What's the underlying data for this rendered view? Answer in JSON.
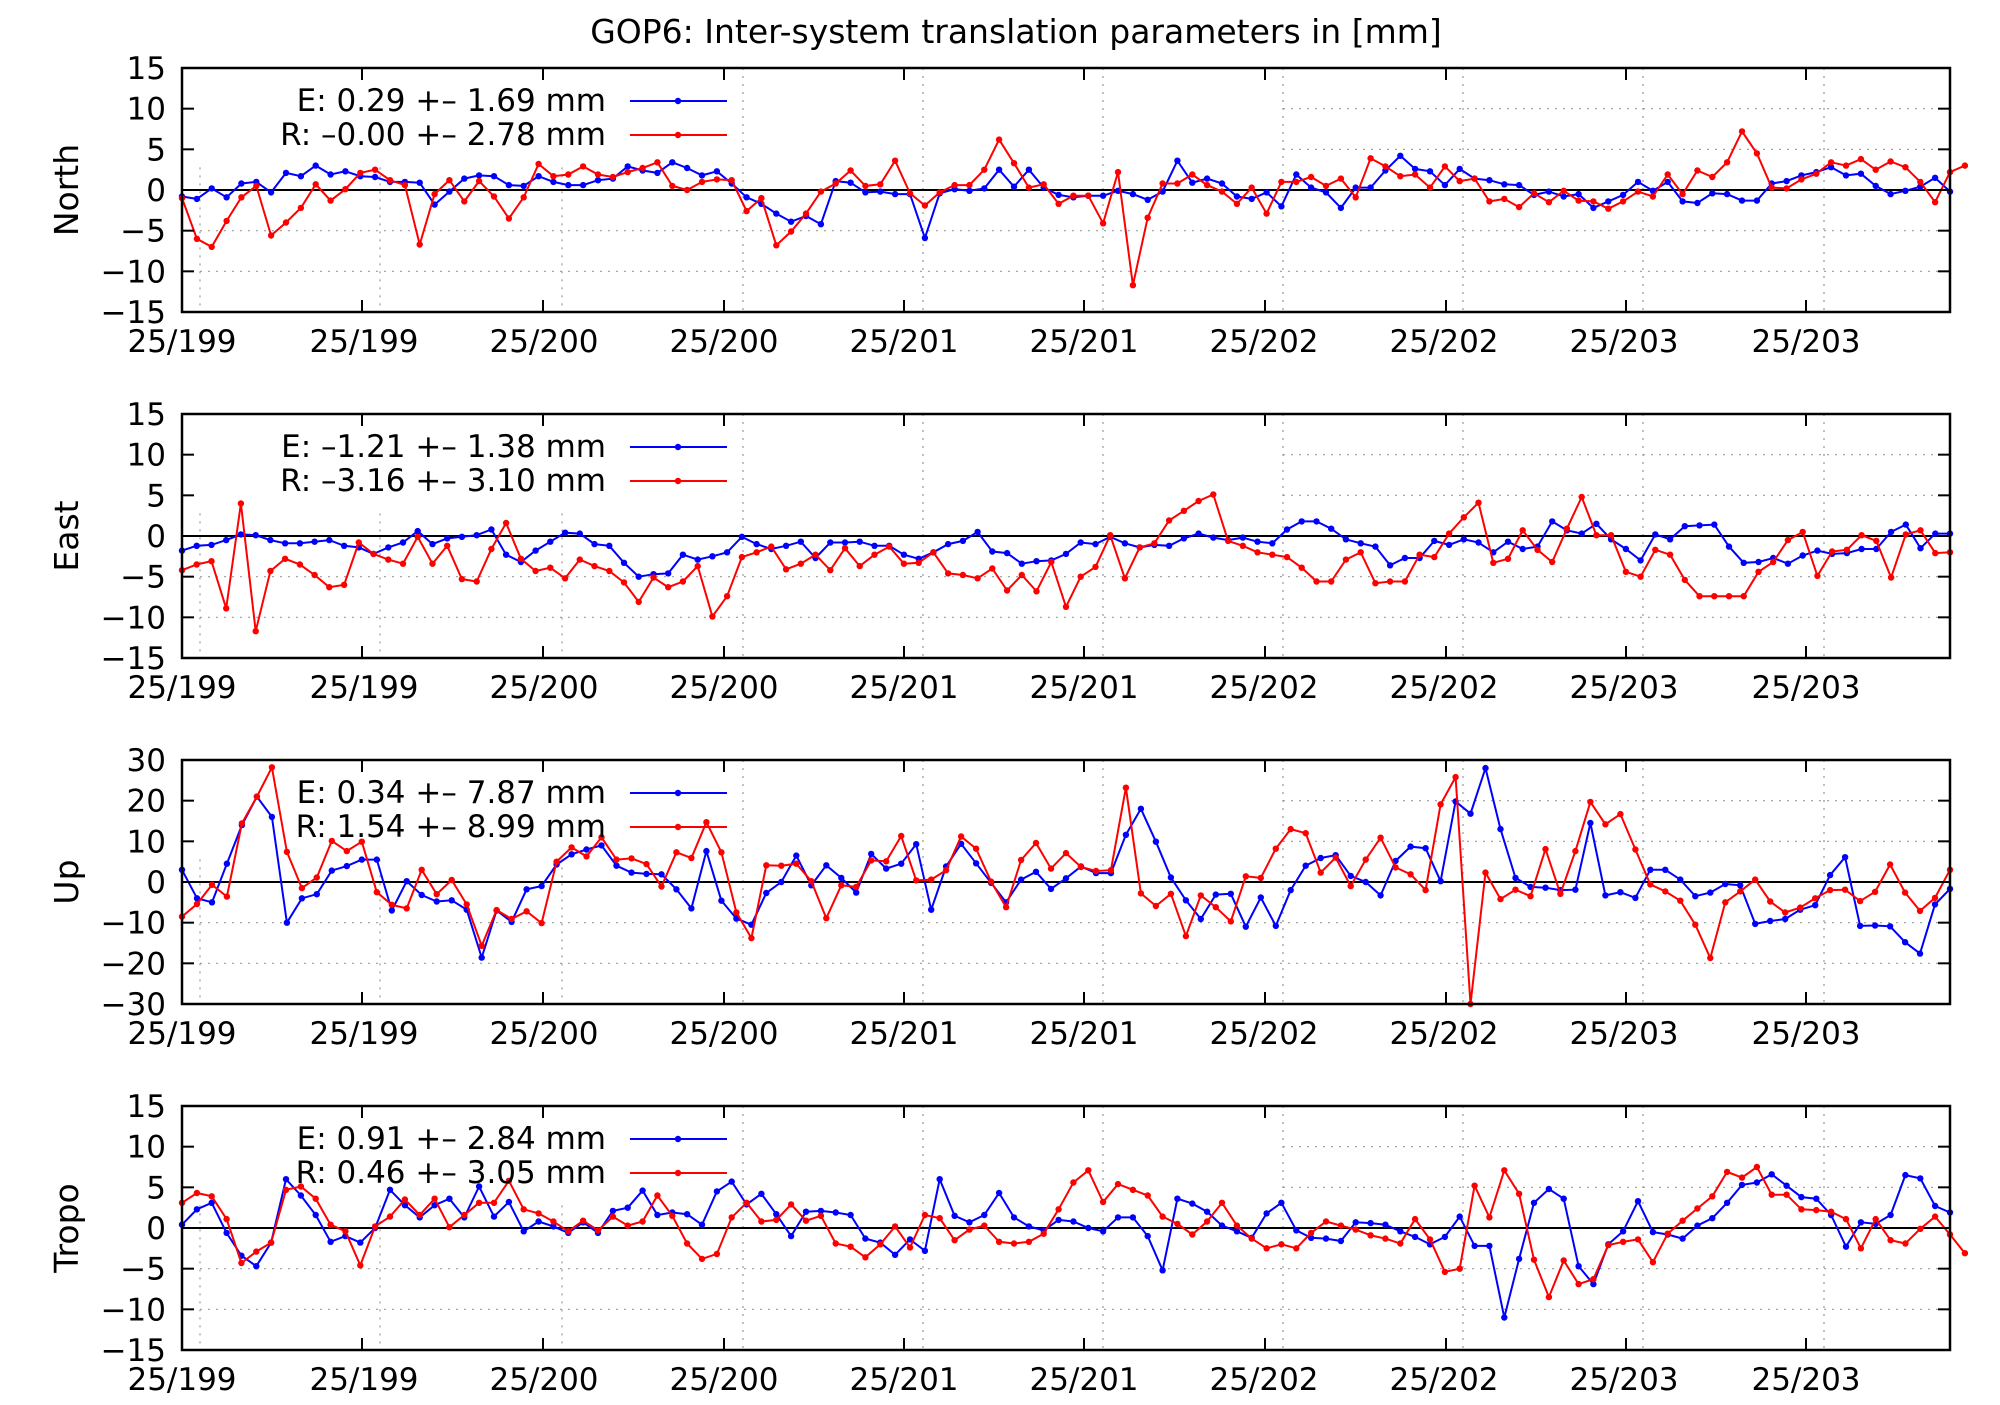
{
  "title": "GOP6: Inter-system translation parameters in [mm]",
  "x_tick_labels": [
    "25/199",
    "25/199",
    "25/200",
    "25/200",
    "25/201",
    "25/201",
    "25/202",
    "25/202",
    "25/203",
    "25/203"
  ],
  "colors": {
    "E": "#0000ff",
    "R": "#ff0000",
    "zero_line": "#000000",
    "grid": "#9a9a9a"
  },
  "chart_data": [
    {
      "type": "line",
      "ylabel": "North",
      "ylim": [
        -15,
        15
      ],
      "yticks": [
        15,
        10,
        5,
        0,
        -5,
        -10,
        -15
      ],
      "grid": "dotted, partial",
      "legend_position": "top-left",
      "series": [
        {
          "name": "E",
          "legend": "E:   0.29 +– 1.69 mm",
          "values": [
            -0.8,
            -1.1,
            0.2,
            -0.9,
            0.8,
            1.0,
            -0.3,
            2.1,
            1.7,
            3.0,
            1.9,
            2.3,
            1.7,
            1.6,
            1.0,
            1.0,
            0.9,
            -1.8,
            -0.2,
            1.4,
            1.8,
            1.7,
            0.6,
            0.5,
            1.7,
            1.0,
            0.6,
            0.6,
            1.2,
            1.4,
            2.9,
            2.4,
            2.1,
            3.4,
            2.7,
            1.8,
            2.3,
            0.8,
            -0.9,
            -1.7,
            -2.9,
            -3.9,
            -3.2,
            -4.2,
            1.1,
            0.9,
            -0.3,
            -0.2,
            -0.5,
            -0.5,
            -5.9,
            -0.4,
            0.1,
            -0.1,
            0.2,
            2.5,
            0.4,
            2.5,
            0.3,
            -0.6,
            -0.9,
            -0.7,
            -0.7,
            -0.1,
            -0.5,
            -1.2,
            -0.2,
            3.6,
            0.9,
            1.4,
            0.8,
            -0.8,
            -1.1,
            -0.3,
            -2.0,
            1.9,
            0.3,
            -0.3,
            -2.2,
            0.3,
            0.3,
            2.4,
            4.2,
            2.6,
            2.3,
            0.6,
            2.6,
            1.4,
            1.2,
            0.7,
            0.6,
            -0.6,
            -0.2,
            -0.8,
            -0.5,
            -2.2,
            -1.4,
            -0.6,
            1.0,
            -0.1,
            1.0,
            -1.4,
            -1.6,
            -0.4,
            -0.5,
            -1.3,
            -1.3,
            0.8,
            1.1,
            1.8,
            2.2,
            2.8,
            1.8,
            2.0,
            0.5,
            -0.5,
            -0.1,
            0.4,
            1.5,
            -0.2
          ]
        },
        {
          "name": "R",
          "legend": "R:  –0.00 +– 2.78 mm",
          "values": [
            -1.0,
            -6.0,
            -7.0,
            -3.8,
            -0.9,
            0.5,
            -5.6,
            -4.0,
            -2.2,
            0.7,
            -1.3,
            0.1,
            2.1,
            2.5,
            1.2,
            0.6,
            -6.7,
            -0.5,
            1.2,
            -1.4,
            1.1,
            -0.8,
            -3.5,
            -0.9,
            3.2,
            1.7,
            1.9,
            2.9,
            1.9,
            1.6,
            2.2,
            2.7,
            3.4,
            0.5,
            0.0,
            1.0,
            1.3,
            1.2,
            -2.6,
            -1.0,
            -6.8,
            -5.1,
            -2.9,
            -0.2,
            0.8,
            2.4,
            0.5,
            0.7,
            3.6,
            -0.4,
            -1.9,
            -0.3,
            0.6,
            0.6,
            2.5,
            6.2,
            3.3,
            0.3,
            0.7,
            -1.7,
            -0.7,
            -0.7,
            -4.1,
            2.2,
            -11.7,
            -3.4,
            0.8,
            0.8,
            1.9,
            0.6,
            -0.2,
            -1.7,
            0.3,
            -2.9,
            1.0,
            1.0,
            1.6,
            0.5,
            1.4,
            -0.9,
            3.9,
            2.9,
            1.7,
            1.9,
            0.3,
            2.9,
            1.1,
            1.4,
            -1.4,
            -1.1,
            -2.1,
            -0.4,
            -1.5,
            -0.1,
            -1.3,
            -1.4,
            -2.3,
            -1.4,
            -0.2,
            -0.8,
            1.9,
            -0.5,
            2.4,
            1.6,
            3.4,
            7.2,
            4.5,
            0.3,
            0.2,
            1.3,
            2.0,
            3.4,
            3.0,
            3.8,
            2.5,
            3.5,
            2.8,
            1.0,
            -1.5,
            2.2,
            3.0
          ]
        }
      ]
    },
    {
      "type": "line",
      "ylabel": "East",
      "ylim": [
        -15,
        15
      ],
      "yticks": [
        15,
        10,
        5,
        0,
        -5,
        -10,
        -15
      ],
      "grid": "dotted, partial",
      "legend_position": "top-left",
      "series": [
        {
          "name": "E",
          "legend": "E:  –1.21 +– 1.38 mm",
          "values": [
            -1.8,
            -1.2,
            -1.1,
            -0.5,
            0.2,
            0.1,
            -0.5,
            -0.9,
            -0.9,
            -0.7,
            -0.5,
            -1.2,
            -1.4,
            -2.2,
            -1.4,
            -0.8,
            0.6,
            -1.0,
            -0.3,
            -0.1,
            0.1,
            0.8,
            -2.3,
            -3.2,
            -1.8,
            -0.7,
            0.4,
            0.3,
            -1.0,
            -1.2,
            -3.3,
            -5.0,
            -4.7,
            -4.6,
            -2.3,
            -2.9,
            -2.5,
            -2.0,
            -0.1,
            -1.0,
            -1.6,
            -1.2,
            -0.7,
            -2.7,
            -0.8,
            -0.8,
            -0.7,
            -1.2,
            -1.2,
            -2.3,
            -2.8,
            -2.0,
            -1.0,
            -0.6,
            0.5,
            -1.9,
            -2.1,
            -3.4,
            -3.1,
            -3.0,
            -2.2,
            -0.8,
            -1.0,
            -0.1,
            -0.9,
            -1.4,
            -1.1,
            -1.2,
            -0.3,
            0.3,
            -0.2,
            -0.5,
            -0.2,
            -0.7,
            -0.9,
            0.8,
            1.8,
            1.8,
            0.9,
            -0.4,
            -0.9,
            -1.3,
            -3.6,
            -2.7,
            -2.7,
            -0.6,
            -1.1,
            -0.4,
            -0.8,
            -2.0,
            -0.7,
            -1.6,
            -1.3,
            1.8,
            0.7,
            0.3,
            1.5,
            -0.4,
            -1.6,
            -3.0,
            0.2,
            -0.4,
            1.2,
            1.3,
            1.4,
            -1.3,
            -3.3,
            -3.2,
            -2.7,
            -3.4,
            -2.4,
            -1.8,
            -2.2,
            -2.1,
            -1.6,
            -1.6,
            0.5,
            1.4,
            -1.5,
            0.3,
            0.3
          ]
        },
        {
          "name": "R",
          "legend": "R:  –3.16 +– 3.10 mm",
          "values": [
            -4.2,
            -3.5,
            -3.1,
            -8.9,
            4.0,
            -11.7,
            -4.3,
            -2.8,
            -3.5,
            -4.8,
            -6.3,
            -6.0,
            -0.8,
            -2.2,
            -2.9,
            -3.4,
            -0.1,
            -3.4,
            -1.2,
            -5.3,
            -5.6,
            -1.6,
            1.6,
            -2.8,
            -4.3,
            -3.9,
            -5.2,
            -2.9,
            -3.7,
            -4.3,
            -5.7,
            -8.1,
            -5.1,
            -6.3,
            -5.6,
            -3.7,
            -9.9,
            -7.4,
            -2.6,
            -2.0,
            -1.3,
            -4.1,
            -3.4,
            -2.3,
            -4.2,
            -1.5,
            -3.7,
            -2.3,
            -1.3,
            -3.4,
            -3.3,
            -2.0,
            -4.6,
            -4.8,
            -5.2,
            -4.0,
            -6.7,
            -4.8,
            -6.8,
            -3.2,
            -8.7,
            -5.0,
            -3.8,
            0.1,
            -5.2,
            -1.4,
            -0.9,
            1.9,
            3.1,
            4.3,
            5.1,
            -0.6,
            -1.2,
            -2.0,
            -2.3,
            -2.6,
            -3.9,
            -5.6,
            -5.6,
            -2.9,
            -2.0,
            -5.8,
            -5.6,
            -5.6,
            -2.3,
            -2.6,
            0.3,
            2.3,
            4.1,
            -3.3,
            -2.8,
            0.7,
            -1.7,
            -3.2,
            0.9,
            4.8,
            0.1,
            0.1,
            -4.4,
            -5.0,
            -1.7,
            -2.3,
            -5.4,
            -7.4,
            -7.4,
            -7.4,
            -7.4,
            -4.4,
            -3.2,
            -0.5,
            0.5,
            -4.9,
            -1.9,
            -1.7,
            0.1,
            -0.6,
            -5.1,
            0.2,
            0.7,
            -2.1,
            -2.0
          ]
        }
      ]
    },
    {
      "type": "line",
      "ylabel": "Up",
      "ylim": [
        -30,
        30
      ],
      "yticks": [
        30,
        20,
        10,
        0,
        -10,
        -20,
        -30
      ],
      "grid": "dotted, partial",
      "legend_position": "top-left",
      "series": [
        {
          "name": "E",
          "legend": "E:   0.34 +– 7.87 mm",
          "values": [
            3.0,
            -4.0,
            -5.0,
            4.5,
            14.0,
            21.0,
            16.0,
            -10.0,
            -4.0,
            -3.0,
            2.8,
            3.9,
            5.5,
            5.5,
            -7.0,
            0.2,
            -3.2,
            -4.8,
            -4.5,
            -6.8,
            -18.6,
            -7.0,
            -9.8,
            -1.8,
            -1.0,
            4.3,
            6.8,
            8.0,
            9.0,
            4.0,
            2.3,
            2.0,
            1.9,
            -1.8,
            -6.5,
            7.6,
            -4.6,
            -9.0,
            -10.5,
            -2.7,
            0.0,
            6.5,
            -0.8,
            4.1,
            1.0,
            -2.6,
            6.9,
            3.3,
            4.5,
            9.3,
            -6.8,
            3.8,
            9.4,
            4.6,
            -0.2,
            -5.0,
            0.6,
            2.5,
            -1.7,
            0.9,
            3.8,
            2.2,
            2.2,
            11.6,
            18.0,
            9.9,
            1.1,
            -4.5,
            -9.1,
            -3.1,
            -2.9,
            -11.0,
            -3.8,
            -10.8,
            -2.0,
            4.0,
            5.9,
            6.6,
            1.5,
            0.0,
            -3.3,
            5.2,
            8.7,
            8.3,
            0.2,
            19.8,
            16.8,
            28.0,
            13.0,
            1.0,
            -1.2,
            -1.4,
            -2.0,
            -1.9,
            14.5,
            -3.3,
            -2.5,
            -3.9,
            3.0,
            3.0,
            0.6,
            -3.5,
            -2.6,
            -0.5,
            -0.8,
            -10.3,
            -9.6,
            -9.1,
            -6.8,
            -5.7,
            1.7,
            6.1,
            -10.8,
            -10.7,
            -10.9,
            -14.8,
            -17.6,
            -5.5,
            -1.7
          ]
        },
        {
          "name": "R",
          "legend": "R:   1.54 +– 8.99 mm",
          "values": [
            -8.5,
            -5.4,
            -0.7,
            -3.6,
            14.4,
            21.0,
            28.2,
            7.4,
            -1.5,
            1.1,
            10.1,
            7.6,
            9.9,
            -2.5,
            -5.6,
            -6.5,
            3.0,
            -3.0,
            0.5,
            -5.5,
            -15.7,
            -6.9,
            -9.1,
            -7.2,
            -10.1,
            5.0,
            8.5,
            6.3,
            11.0,
            5.5,
            5.8,
            4.4,
            -1.1,
            7.3,
            5.9,
            14.7,
            7.3,
            -7.5,
            -13.8,
            4.1,
            4.0,
            4.5,
            0.2,
            -8.9,
            -0.8,
            -1.2,
            5.3,
            5.1,
            11.3,
            0.4,
            0.6,
            2.9,
            11.2,
            8.2,
            0.1,
            -6.2,
            5.4,
            9.6,
            3.3,
            7.1,
            3.7,
            2.7,
            2.9,
            23.2,
            -2.8,
            -5.9,
            -2.9,
            -13.3,
            -3.3,
            -6.2,
            -9.7,
            1.4,
            1.0,
            8.2,
            13.0,
            12.0,
            2.3,
            6.0,
            -1.0,
            5.5,
            10.9,
            3.6,
            1.9,
            -2.0,
            19.1,
            25.8,
            -30.0,
            2.3,
            -4.2,
            -1.9,
            -3.5,
            8.1,
            -2.9,
            7.6,
            19.7,
            14.2,
            16.7,
            8.0,
            -0.6,
            -2.3,
            -4.6,
            -10.5,
            -18.7,
            -5.0,
            -2.3,
            0.6,
            -4.8,
            -7.5,
            -6.3,
            -4.0,
            -2.0,
            -1.9,
            -4.7,
            -2.4,
            4.3,
            -2.6,
            -7.1,
            -3.9,
            3.0
          ]
        }
      ]
    },
    {
      "type": "line",
      "ylabel": "Tropo",
      "ylim": [
        -15,
        15
      ],
      "yticks": [
        15,
        10,
        5,
        0,
        -5,
        -10,
        -15
      ],
      "grid": "dotted, partial",
      "legend_position": "top-left",
      "series": [
        {
          "name": "E",
          "legend": "E:   0.91 +– 2.84 mm",
          "values": [
            0.4,
            2.3,
            3.1,
            -0.6,
            -3.4,
            -4.7,
            -1.8,
            6.0,
            4.0,
            1.6,
            -1.7,
            -1.0,
            -1.8,
            0.0,
            4.7,
            2.8,
            1.3,
            2.8,
            3.6,
            1.3,
            5.1,
            1.4,
            3.2,
            -0.4,
            0.8,
            0.2,
            -0.6,
            0.7,
            -0.6,
            2.1,
            2.5,
            4.6,
            1.6,
            1.9,
            1.7,
            0.4,
            4.5,
            5.7,
            2.9,
            4.2,
            1.7,
            -1.0,
            2.0,
            2.1,
            1.9,
            1.6,
            -1.3,
            -1.8,
            -3.3,
            -1.4,
            -2.8,
            6.0,
            1.5,
            0.7,
            1.6,
            4.3,
            1.3,
            0.2,
            -0.3,
            1.0,
            0.8,
            0.0,
            -0.4,
            1.3,
            1.3,
            -1.0,
            -5.2,
            3.6,
            3.0,
            2.0,
            0.3,
            -0.4,
            -1.2,
            1.8,
            3.1,
            -0.3,
            -1.2,
            -1.3,
            -1.6,
            0.7,
            0.6,
            0.4,
            -0.4,
            -1.1,
            -2.0,
            -1.1,
            1.4,
            -2.2,
            -2.2,
            -11.0,
            -3.8,
            3.1,
            4.8,
            3.6,
            -4.7,
            -6.9,
            -2.0,
            -0.4,
            3.3,
            -0.5,
            -0.8,
            -1.3,
            0.3,
            1.2,
            3.1,
            5.3,
            5.6,
            6.6,
            5.2,
            3.8,
            3.6,
            1.6,
            -2.3,
            0.7,
            0.5,
            1.6,
            6.5,
            6.1,
            2.7,
            1.9
          ]
        },
        {
          "name": "R",
          "legend": "R:   0.46 +– 3.05 mm",
          "values": [
            3.1,
            4.3,
            3.9,
            1.1,
            -4.3,
            -2.9,
            -1.8,
            4.7,
            5.1,
            3.6,
            0.4,
            -0.4,
            -4.6,
            0.2,
            1.4,
            3.5,
            1.6,
            3.6,
            0.1,
            1.6,
            3.1,
            3.1,
            5.8,
            2.3,
            1.8,
            0.8,
            -0.4,
            0.9,
            -0.3,
            1.4,
            0.3,
            0.8,
            4.0,
            1.5,
            -1.9,
            -3.8,
            -3.2,
            1.3,
            3.1,
            0.8,
            1.0,
            2.9,
            0.9,
            1.5,
            -1.9,
            -2.3,
            -3.6,
            -2.0,
            0.2,
            -2.4,
            1.6,
            1.2,
            -1.5,
            -0.2,
            0.3,
            -1.7,
            -1.9,
            -1.7,
            -0.7,
            2.3,
            5.6,
            7.1,
            3.2,
            5.4,
            4.7,
            4.0,
            1.4,
            0.5,
            -0.8,
            0.8,
            3.1,
            0.3,
            -1.3,
            -2.5,
            -2.0,
            -2.5,
            -0.6,
            0.8,
            0.3,
            -0.2,
            -0.9,
            -1.3,
            -1.9,
            1.1,
            -1.4,
            -5.4,
            -5.0,
            5.2,
            1.3,
            7.1,
            4.2,
            -3.9,
            -8.5,
            -4.0,
            -6.9,
            -6.3,
            -2.1,
            -1.7,
            -1.4,
            -4.2,
            -0.7,
            0.9,
            2.4,
            3.9,
            6.9,
            6.2,
            7.5,
            4.1,
            4.1,
            2.3,
            2.2,
            2.0,
            1.1,
            -2.5,
            1.1,
            -1.5,
            -1.9,
            -0.1,
            1.4,
            -0.8,
            -3.1
          ]
        }
      ]
    }
  ]
}
